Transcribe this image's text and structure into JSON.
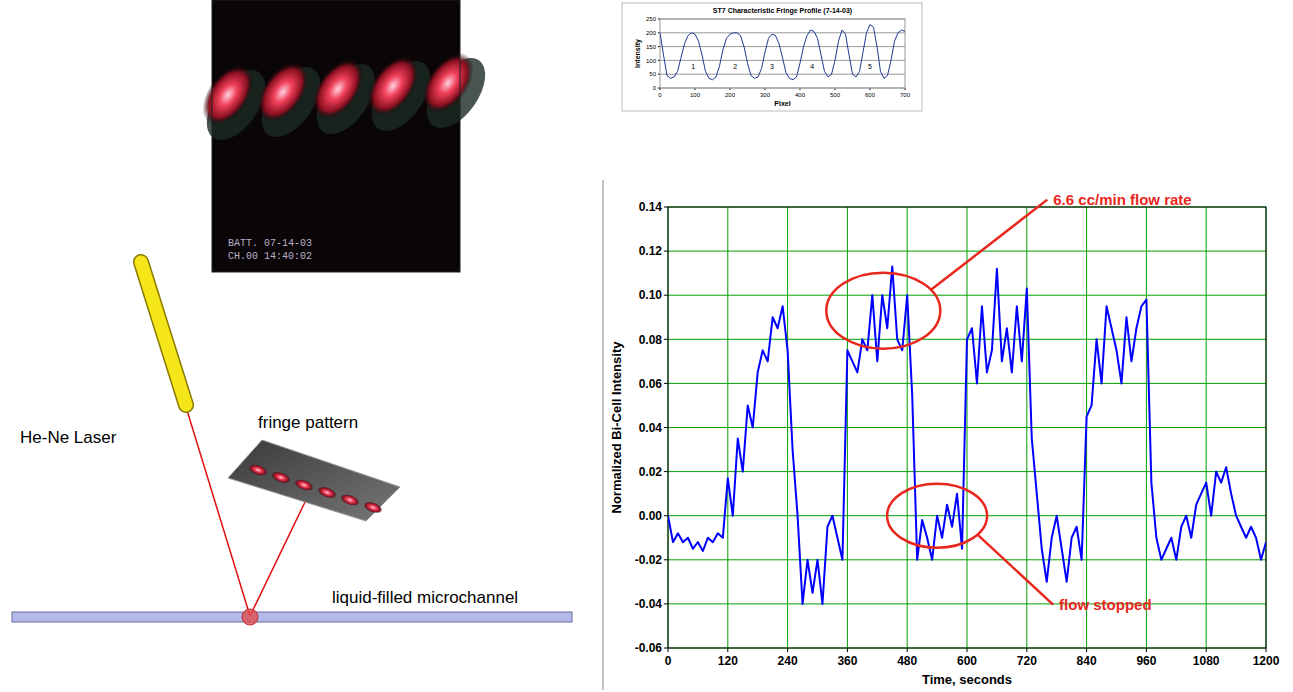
{
  "diagram": {
    "laser_label": "He-Ne Laser",
    "fringe_label": "fringe pattern",
    "channel_label": "liquid-filled microchannel",
    "photo_stamp": [
      "BATT.   07-14-03",
      "CH.00   14:40:02"
    ]
  },
  "chart_data": [
    {
      "type": "line",
      "x_label": "Time, seconds",
      "y_label": "Normalized Bi-Cell Intensity",
      "x": [
        0,
        10,
        20,
        30,
        40,
        50,
        60,
        70,
        80,
        90,
        100,
        110,
        120,
        130,
        140,
        150,
        160,
        170,
        180,
        190,
        200,
        210,
        220,
        230,
        240,
        250,
        260,
        270,
        280,
        290,
        300,
        310,
        320,
        330,
        340,
        350,
        360,
        370,
        380,
        390,
        400,
        410,
        420,
        430,
        440,
        450,
        460,
        470,
        480,
        490,
        500,
        510,
        520,
        530,
        540,
        550,
        560,
        570,
        580,
        590,
        600,
        610,
        620,
        630,
        640,
        650,
        660,
        670,
        680,
        690,
        700,
        710,
        720,
        730,
        740,
        750,
        760,
        770,
        780,
        790,
        800,
        810,
        820,
        830,
        840,
        850,
        860,
        870,
        880,
        890,
        900,
        910,
        920,
        930,
        940,
        950,
        960,
        970,
        980,
        990,
        1000,
        1010,
        1020,
        1030,
        1040,
        1050,
        1060,
        1070,
        1080,
        1090,
        1100,
        1110,
        1120,
        1130,
        1140,
        1150,
        1160,
        1170,
        1180,
        1190,
        1200
      ],
      "values": [
        0.0,
        -0.012,
        -0.008,
        -0.012,
        -0.01,
        -0.015,
        -0.012,
        -0.016,
        -0.01,
        -0.012,
        -0.008,
        -0.01,
        0.017,
        0.0,
        0.035,
        0.02,
        0.05,
        0.04,
        0.065,
        0.075,
        0.07,
        0.09,
        0.085,
        0.095,
        0.075,
        0.03,
        0.0,
        -0.04,
        -0.02,
        -0.035,
        -0.02,
        -0.04,
        -0.005,
        0.0,
        -0.01,
        -0.02,
        0.075,
        0.07,
        0.065,
        0.08,
        0.075,
        0.1,
        0.07,
        0.1,
        0.085,
        0.113,
        0.08,
        0.075,
        0.1,
        0.055,
        -0.02,
        -0.002,
        -0.01,
        -0.02,
        0.0,
        -0.01,
        0.005,
        -0.005,
        0.01,
        -0.015,
        0.08,
        0.085,
        0.06,
        0.095,
        0.065,
        0.075,
        0.112,
        0.07,
        0.085,
        0.065,
        0.095,
        0.07,
        0.103,
        0.035,
        0.01,
        -0.015,
        -0.03,
        -0.01,
        0.0,
        -0.015,
        -0.03,
        -0.01,
        -0.005,
        -0.02,
        0.045,
        0.05,
        0.08,
        0.06,
        0.095,
        0.085,
        0.075,
        0.06,
        0.09,
        0.07,
        0.085,
        0.095,
        0.098,
        0.015,
        -0.01,
        -0.02,
        -0.015,
        -0.01,
        -0.02,
        -0.005,
        0.0,
        -0.01,
        0.005,
        0.01,
        0.015,
        0.0,
        0.02,
        0.015,
        0.022,
        0.01,
        0.0,
        -0.005,
        -0.01,
        -0.005,
        -0.01,
        -0.02,
        -0.012
      ],
      "color": "#0000ff",
      "xlim": [
        0,
        1200
      ],
      "xticks": [
        0,
        120,
        240,
        360,
        480,
        600,
        720,
        840,
        960,
        1080,
        1200
      ],
      "ylim": [
        -0.06,
        0.14
      ],
      "yticks": [
        -0.06,
        -0.04,
        -0.02,
        {
          "value": 0,
          "label": "0.00"
        },
        0.02,
        0.04,
        0.06,
        0.08,
        {
          "value": 0.1,
          "label": "0.10"
        },
        0.12,
        0.14
      ],
      "grid": true,
      "annotations": [
        {
          "text": "6.6 cc/min flow rate",
          "x": 432,
          "y": 0.093
        },
        {
          "text": "flow stopped",
          "x": 540,
          "y": 0.0
        }
      ]
    },
    {
      "type": "line",
      "title": "ST7 Characteristic Fringe Profile (7-14-03)",
      "x_label": "Pixel",
      "y_label": "Intensity",
      "x": [
        0,
        10,
        20,
        30,
        40,
        50,
        60,
        70,
        80,
        90,
        100,
        110,
        120,
        130,
        140,
        150,
        160,
        170,
        180,
        190,
        200,
        210,
        220,
        230,
        240,
        250,
        260,
        270,
        280,
        290,
        300,
        310,
        320,
        330,
        340,
        350,
        360,
        370,
        380,
        390,
        400,
        410,
        420,
        430,
        440,
        450,
        460,
        470,
        480,
        490,
        500,
        510,
        520,
        530,
        540,
        550,
        560,
        570,
        580,
        590,
        600,
        610,
        620,
        630,
        640,
        650,
        660,
        670,
        680,
        690,
        700
      ],
      "values": [
        200,
        120,
        45,
        35,
        40,
        60,
        110,
        160,
        190,
        200,
        195,
        170,
        120,
        60,
        35,
        30,
        40,
        80,
        140,
        180,
        195,
        200,
        200,
        190,
        150,
        90,
        45,
        35,
        40,
        70,
        130,
        180,
        195,
        190,
        160,
        110,
        55,
        35,
        30,
        40,
        90,
        150,
        190,
        210,
        205,
        180,
        120,
        60,
        40,
        50,
        100,
        170,
        210,
        195,
        120,
        50,
        40,
        60,
        130,
        200,
        230,
        220,
        150,
        60,
        35,
        45,
        100,
        170,
        200,
        210,
        205
      ],
      "color": "#1f3a93",
      "xlim": [
        0,
        700
      ],
      "xticks": [
        0,
        100,
        200,
        300,
        400,
        500,
        600,
        700
      ],
      "ylim": [
        0,
        250
      ],
      "yticks": [
        0,
        50,
        100,
        150,
        200,
        250
      ],
      "grid": "y",
      "annotations": [
        {
          "text": "1",
          "x": 95,
          "y": 75
        },
        {
          "text": "2",
          "x": 215,
          "y": 75
        },
        {
          "text": "3",
          "x": 320,
          "y": 75
        },
        {
          "text": "4",
          "x": 435,
          "y": 75
        },
        {
          "text": "5",
          "x": 600,
          "y": 75
        }
      ]
    }
  ]
}
